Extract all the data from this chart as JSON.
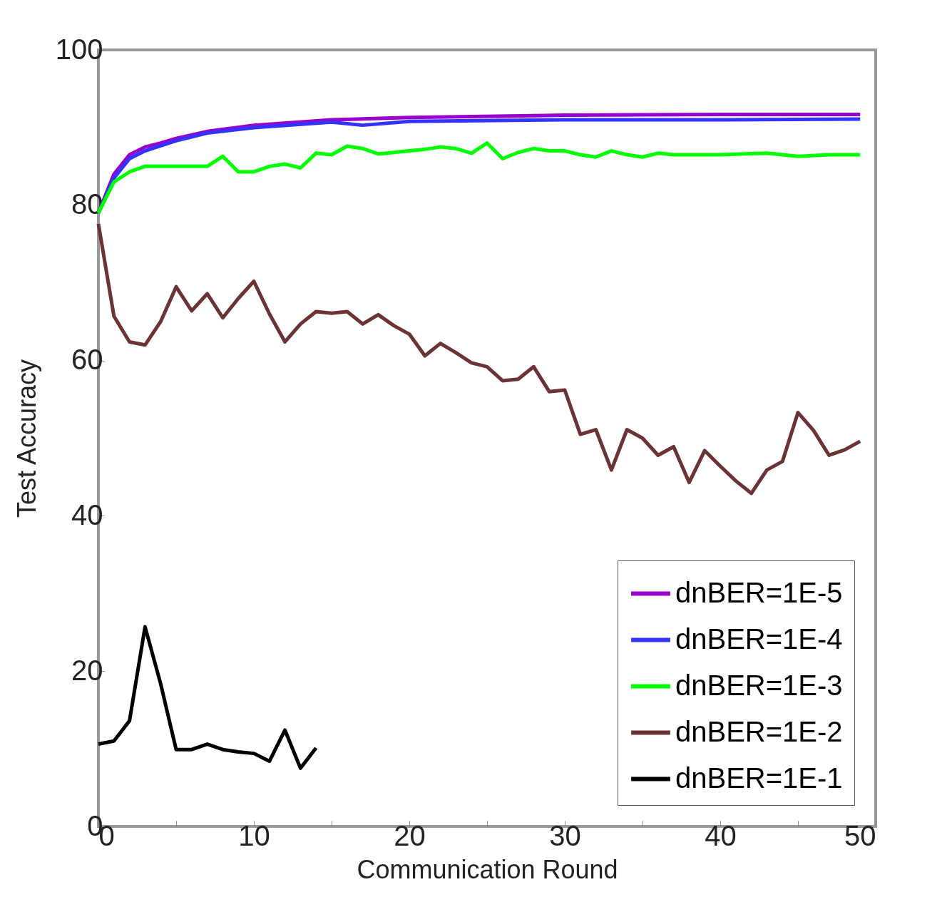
{
  "chart_data": {
    "type": "line",
    "xlabel": "Communication Round",
    "ylabel": "Test Accuracy",
    "xlim": [
      0,
      50
    ],
    "ylim": [
      0,
      100
    ],
    "xticks": [
      0,
      {
        "value": 5,
        "label": null
      },
      10,
      {
        "value": 15,
        "label": null
      },
      20,
      {
        "value": 25,
        "label": null
      },
      30,
      {
        "value": 35,
        "label": null
      },
      40,
      {
        "value": 45,
        "label": null
      },
      50
    ],
    "yticks": [
      0,
      20,
      40,
      60,
      80,
      100
    ],
    "grid": false,
    "legend": "bottom right",
    "line_style": "solid",
    "marker": "none",
    "series": [
      {
        "name": "dnBER=1E-5",
        "color": "#9900cc",
        "x": [
          0,
          1,
          2,
          3,
          4,
          5,
          7,
          10,
          15,
          20,
          30,
          40,
          49
        ],
        "values": [
          79,
          84,
          86.5,
          87.5,
          88,
          88.6,
          89.5,
          90.3,
          91,
          91.3,
          91.6,
          91.7,
          91.7
        ]
      },
      {
        "name": "dnBER=1E-4",
        "color": "#3333ff",
        "x": [
          0,
          1,
          2,
          3,
          5,
          7,
          10,
          15,
          17,
          20,
          30,
          40,
          49
        ],
        "values": [
          79,
          83.5,
          86,
          87,
          88.3,
          89.3,
          90,
          90.7,
          90.3,
          90.8,
          91,
          91,
          91.1
        ]
      },
      {
        "name": "dnBER=1E-3",
        "color": "#00ff00",
        "x": [
          0,
          1,
          2,
          3,
          4,
          5,
          6,
          7,
          8,
          9,
          10,
          11,
          12,
          13,
          14,
          15,
          16,
          17,
          18,
          19,
          20,
          21,
          22,
          23,
          24,
          25,
          26,
          27,
          28,
          29,
          30,
          31,
          32,
          33,
          34,
          35,
          36,
          37,
          38,
          40,
          43,
          45,
          47,
          49
        ],
        "values": [
          79,
          83,
          84.3,
          85,
          85,
          85,
          85,
          85,
          86.3,
          84.3,
          84.3,
          85,
          85.3,
          84.8,
          86.7,
          86.5,
          87.6,
          87.3,
          86.6,
          86.8,
          87,
          87.2,
          87.5,
          87.3,
          86.7,
          88,
          86,
          86.8,
          87.3,
          87,
          87,
          86.5,
          86.2,
          87,
          86.5,
          86.2,
          86.7,
          86.5,
          86.5,
          86.5,
          86.7,
          86.3,
          86.5,
          86.5
        ]
      },
      {
        "name": "dnBER=1E-2",
        "color": "#6b3333",
        "x": [
          0,
          1,
          2,
          3,
          4,
          5,
          6,
          7,
          8,
          9,
          10,
          11,
          12,
          13,
          14,
          15,
          16,
          17,
          18,
          19,
          20,
          21,
          22,
          23,
          24,
          25,
          26,
          27,
          28,
          29,
          30,
          31,
          32,
          33,
          34,
          35,
          36,
          37,
          38,
          39,
          40,
          41,
          42,
          43,
          44,
          45,
          46,
          47,
          48,
          49
        ],
        "values": [
          77.6,
          65.7,
          62.4,
          62,
          65,
          69.5,
          66.4,
          68.6,
          65.5,
          68,
          70.2,
          66,
          62.4,
          64.7,
          66.3,
          66.1,
          66.3,
          64.7,
          65.9,
          64.5,
          63.4,
          60.6,
          62.2,
          61,
          59.7,
          59.2,
          57.4,
          57.6,
          59.2,
          56,
          56.2,
          50.5,
          51.1,
          45.9,
          51.1,
          50,
          47.8,
          48.9,
          44.3,
          48.4,
          46.4,
          44.5,
          42.9,
          45.9,
          47,
          53.3,
          51,
          47.8,
          48.5,
          49.6
        ]
      },
      {
        "name": "dnBER=1E-1",
        "color": "#000000",
        "x": [
          0,
          1,
          2,
          3,
          4,
          5,
          6,
          7,
          8,
          9,
          10,
          11,
          12,
          13,
          14
        ],
        "values": [
          10.6,
          11,
          13.6,
          25.7,
          18.4,
          9.9,
          9.9,
          10.6,
          9.9,
          9.6,
          9.4,
          8.4,
          12.4,
          7.5,
          10.1
        ]
      }
    ]
  }
}
